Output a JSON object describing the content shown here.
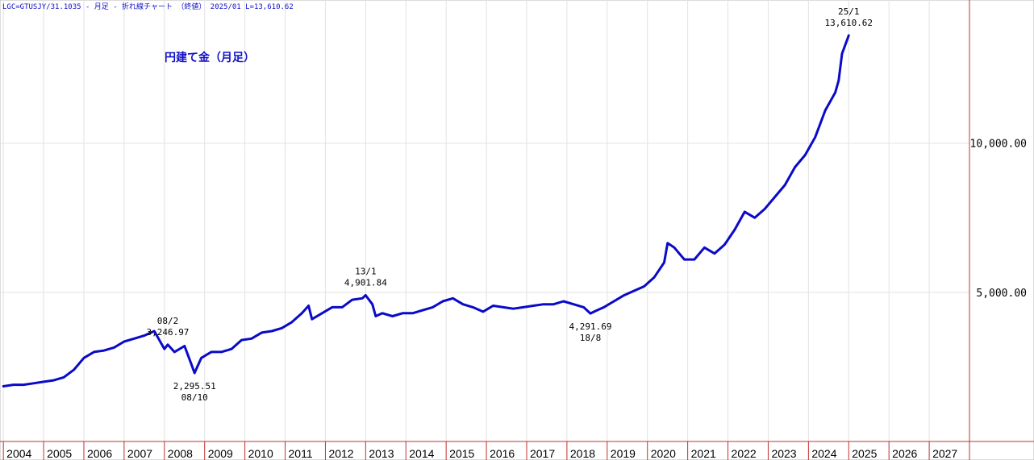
{
  "header": {
    "text": "LGC=GTUSJY/31.1035 - 月足 - 折れ線チャート （終値） 2025/01 L=13,610.62"
  },
  "chart_data": {
    "type": "line",
    "title": "円建て金（月足）",
    "xlabel": "",
    "ylabel": "",
    "x_range": [
      "2003-12",
      "2027-12"
    ],
    "ylim": [
      0,
      14800
    ],
    "yticks": [
      5000,
      10000
    ],
    "ytick_labels": [
      "5,000.00",
      "10,000.00"
    ],
    "xtick_labels": [
      "2004",
      "2005",
      "2006",
      "2007",
      "2008",
      "2009",
      "2010",
      "2011",
      "2012",
      "2013",
      "2014",
      "2015",
      "2016",
      "2017",
      "2018",
      "2019",
      "2020",
      "2021",
      "2022",
      "2023",
      "2024",
      "2025",
      "2026",
      "2027"
    ],
    "grid": true,
    "line_color": "#0a0ac8",
    "series": [
      {
        "x": [
          "2004-01",
          "2004-04",
          "2004-07",
          "2004-10",
          "2005-01",
          "2005-04",
          "2005-07",
          "2005-10",
          "2006-01",
          "2006-04",
          "2006-07",
          "2006-10",
          "2007-01",
          "2007-04",
          "2007-07",
          "2007-10",
          "2008-01",
          "2008-02",
          "2008-04",
          "2008-07",
          "2008-09",
          "2008-10",
          "2008-12",
          "2009-03",
          "2009-06",
          "2009-09",
          "2009-12",
          "2010-03",
          "2010-06",
          "2010-09",
          "2010-12",
          "2011-03",
          "2011-06",
          "2011-08",
          "2011-09",
          "2011-12",
          "2012-03",
          "2012-06",
          "2012-09",
          "2012-12",
          "2013-01",
          "2013-03",
          "2013-04",
          "2013-06",
          "2013-09",
          "2013-12",
          "2014-03",
          "2014-06",
          "2014-09",
          "2014-12",
          "2015-03",
          "2015-06",
          "2015-09",
          "2015-12",
          "2016-03",
          "2016-06",
          "2016-09",
          "2016-12",
          "2017-03",
          "2017-06",
          "2017-09",
          "2017-12",
          "2018-03",
          "2018-06",
          "2018-08",
          "2018-10",
          "2018-12",
          "2019-03",
          "2019-06",
          "2019-09",
          "2019-12",
          "2020-03",
          "2020-06",
          "2020-07",
          "2020-09",
          "2020-12",
          "2021-03",
          "2021-06",
          "2021-09",
          "2021-12",
          "2022-03",
          "2022-06",
          "2022-09",
          "2022-12",
          "2023-03",
          "2023-06",
          "2023-09",
          "2023-12",
          "2024-03",
          "2024-06",
          "2024-09",
          "2024-10",
          "2024-11",
          "2025-01"
        ],
        "values": [
          1850,
          1900,
          1900,
          1950,
          2000,
          2050,
          2150,
          2400,
          2800,
          3000,
          3050,
          3150,
          3350,
          3450,
          3550,
          3700,
          3100,
          3247,
          3000,
          3200,
          2600,
          2296,
          2800,
          3000,
          3000,
          3100,
          3400,
          3450,
          3650,
          3700,
          3800,
          4000,
          4300,
          4550,
          4100,
          4300,
          4500,
          4500,
          4750,
          4800,
          4902,
          4600,
          4200,
          4300,
          4200,
          4300,
          4300,
          4400,
          4500,
          4700,
          4800,
          4600,
          4500,
          4350,
          4550,
          4500,
          4450,
          4500,
          4550,
          4600,
          4600,
          4700,
          4600,
          4500,
          4292,
          4400,
          4500,
          4700,
          4900,
          5050,
          5200,
          5500,
          6000,
          6650,
          6500,
          6100,
          6100,
          6500,
          6300,
          6600,
          7100,
          7700,
          7500,
          7800,
          8200,
          8600,
          9200,
          9600,
          10200,
          11100,
          11700,
          12100,
          13000,
          13611
        ]
      }
    ],
    "annotations": [
      {
        "date": "08/2",
        "value": "3,246.97",
        "x": "2008-02",
        "y": 3247,
        "pos": "above"
      },
      {
        "date": "08/10",
        "value": "2,295.51",
        "x": "2008-10",
        "y": 2296,
        "pos": "below"
      },
      {
        "date": "13/1",
        "value": "4,901.84",
        "x": "2013-01",
        "y": 4902,
        "pos": "above"
      },
      {
        "date": "18/8",
        "value": "4,291.69",
        "x": "2018-08",
        "y": 4292,
        "pos": "below"
      },
      {
        "date": "25/1",
        "value": "13,610.62",
        "x": "2025-01",
        "y": 13611,
        "pos": "above"
      }
    ]
  }
}
